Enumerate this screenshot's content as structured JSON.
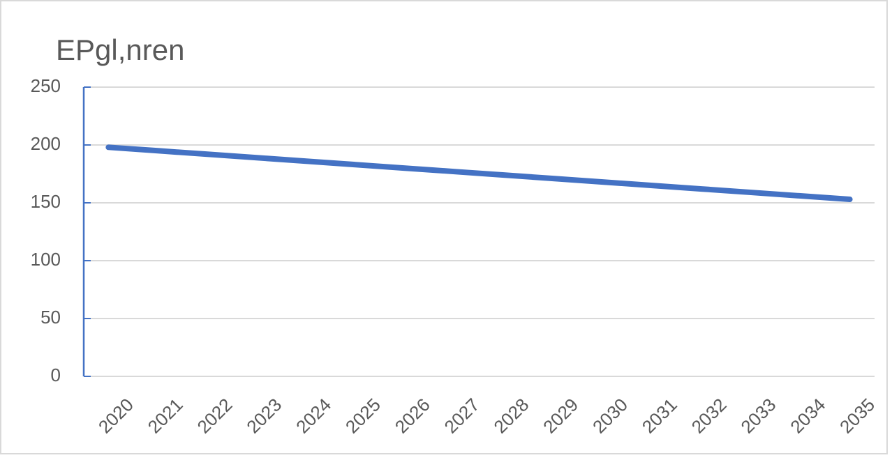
{
  "chart_data": {
    "type": "line",
    "title": "EPgl,nren",
    "categories": [
      "2020",
      "2021",
      "2022",
      "2023",
      "2024",
      "2025",
      "2026",
      "2027",
      "2028",
      "2029",
      "2030",
      "2031",
      "2032",
      "2033",
      "2034",
      "2035"
    ],
    "series": [
      {
        "name": "EPgl,nren",
        "color": "#4472c4",
        "values": [
          198,
          195,
          192,
          189,
          186,
          183,
          180,
          177,
          174,
          171,
          168,
          165,
          162,
          159,
          156,
          153
        ]
      }
    ],
    "ylim": [
      0,
      250
    ],
    "yticks": [
      0,
      50,
      100,
      150,
      200,
      250
    ],
    "grid": true
  }
}
